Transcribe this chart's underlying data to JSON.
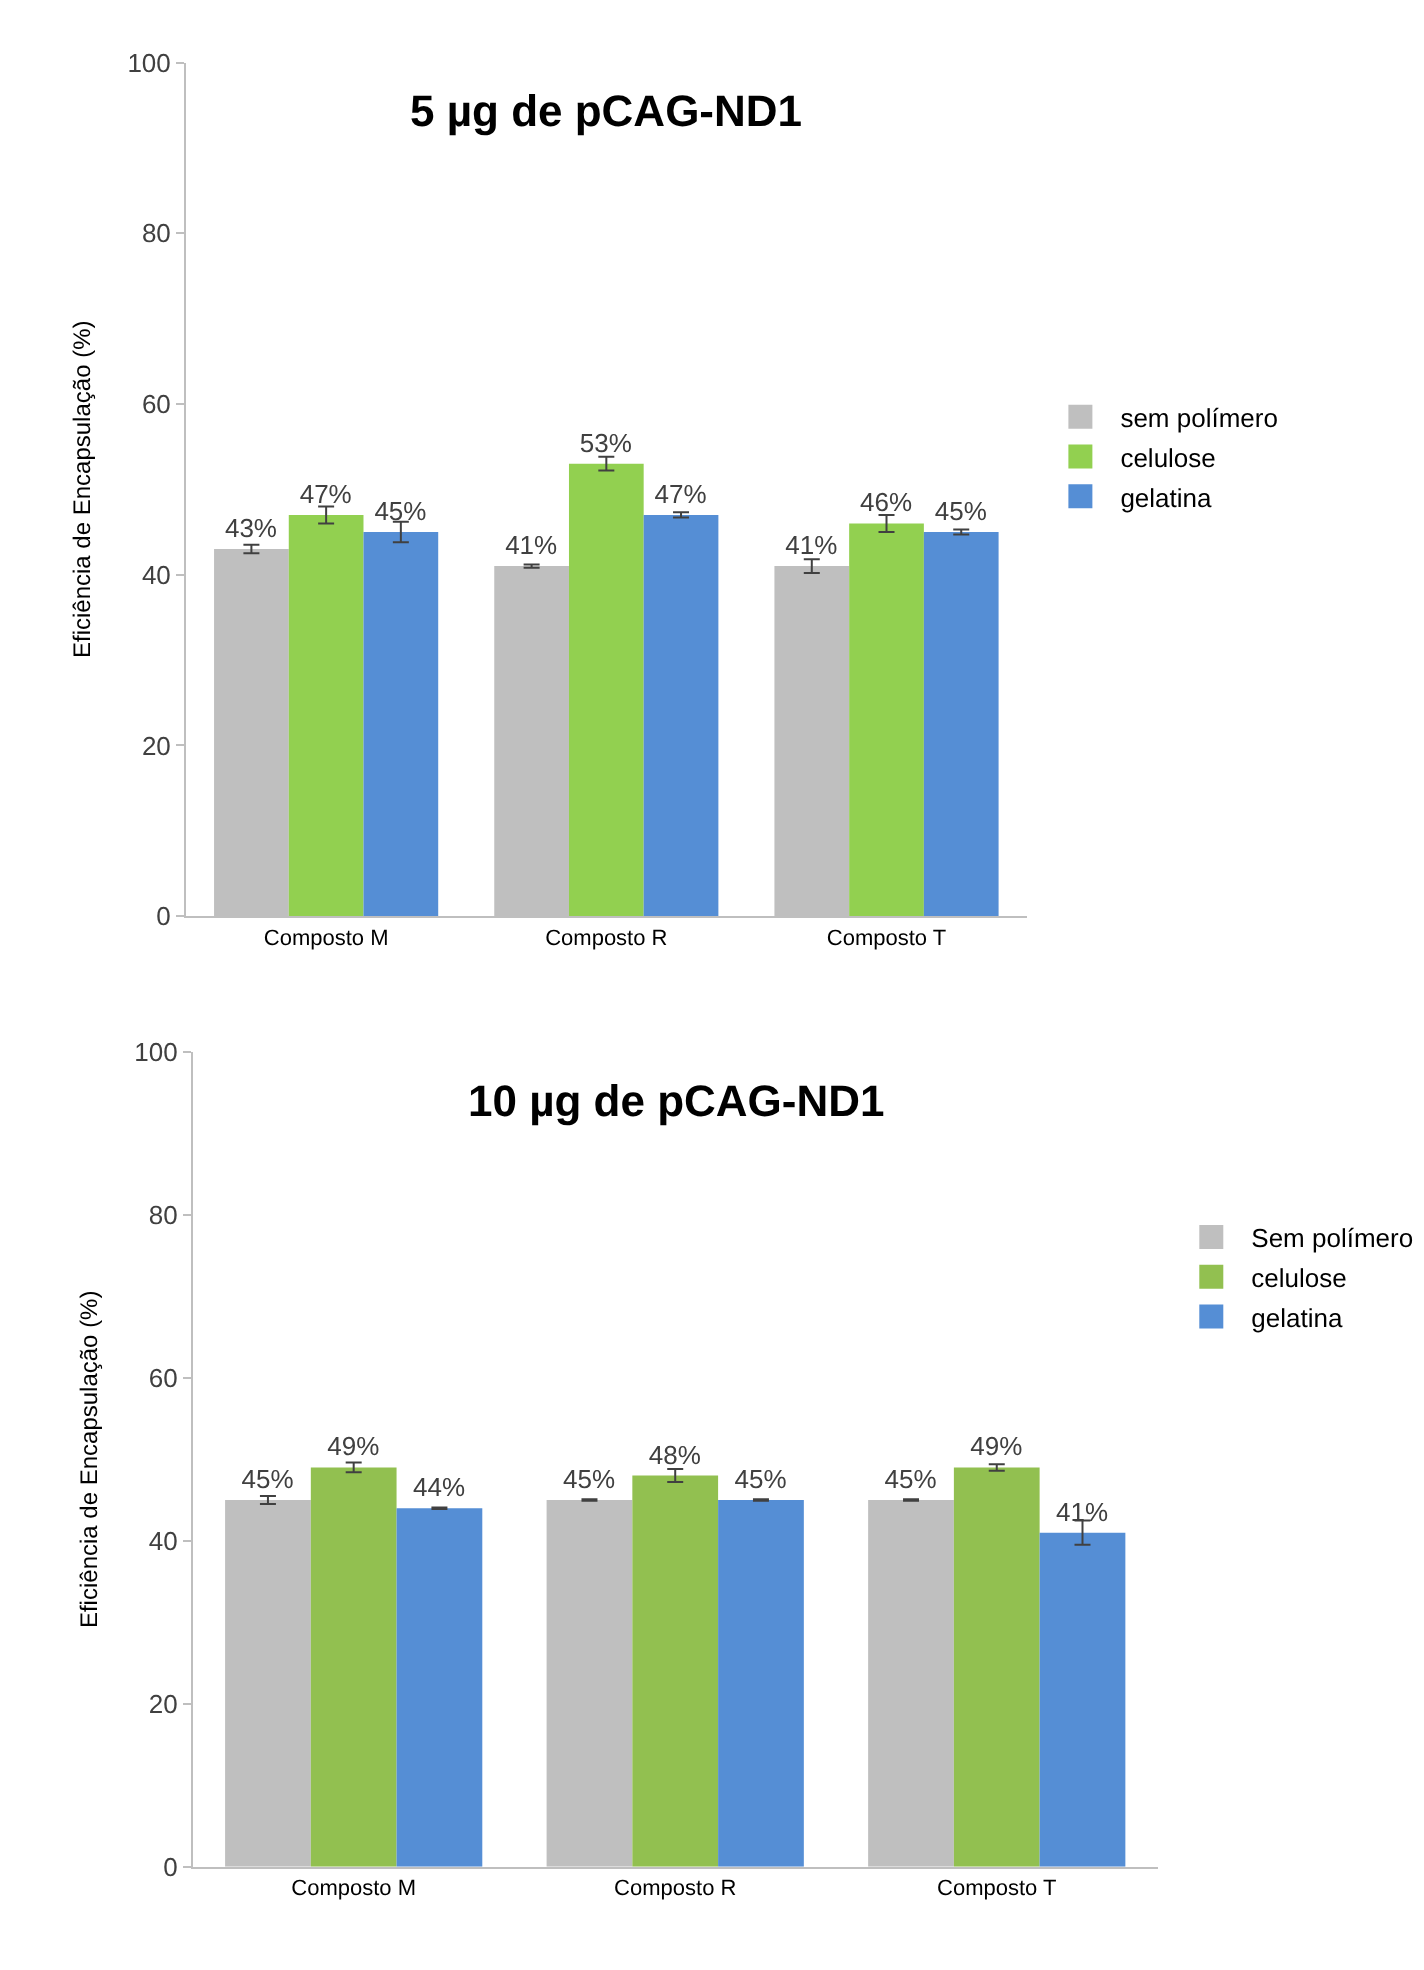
{
  "chart_data": [
    {
      "type": "bar",
      "title": "5 µg de pCAG-ND1",
      "ylabel": "Eficiência de Encapsulação (%)",
      "categories": [
        "Composto M",
        "Composto R",
        "Composto T"
      ],
      "series": [
        {
          "name": "sem polímero",
          "color": "#bfbfbf",
          "values": [
            43,
            41,
            41
          ],
          "errors": [
            0.5,
            0.2,
            0.8
          ],
          "value_labels": [
            "43%",
            "41%",
            "41%"
          ]
        },
        {
          "name": "celulose",
          "color": "#92d050",
          "values": [
            47,
            53,
            46
          ],
          "errors": [
            1,
            0.8,
            1
          ],
          "value_labels": [
            "47%",
            "53%",
            "46%"
          ]
        },
        {
          "name": "gelatina",
          "color": "#558ed5",
          "values": [
            45,
            47,
            45
          ],
          "errors": [
            1.2,
            0.3,
            0.3
          ],
          "value_labels": [
            "45%",
            "47%",
            "45%"
          ]
        }
      ],
      "ylim": [
        0,
        100
      ],
      "yticks": [
        0,
        20,
        40,
        60,
        80,
        100
      ],
      "legend": "right"
    },
    {
      "type": "bar",
      "title": "10 µg de pCAG-ND1",
      "ylabel": "Eficiência de Encapsulação (%)",
      "categories": [
        "Composto M",
        "Composto R",
        "Composto T"
      ],
      "series": [
        {
          "name": "Sem polímero",
          "color": "#bfbfbf",
          "values": [
            45,
            45,
            45
          ],
          "errors": [
            0.5,
            0.1,
            0.1
          ],
          "value_labels": [
            "45%",
            "45%",
            "45%"
          ]
        },
        {
          "name": "celulose",
          "color": "#92c050",
          "values": [
            49,
            48,
            49
          ],
          "errors": [
            0.6,
            0.8,
            0.4
          ],
          "value_labels": [
            "49%",
            "48%",
            "49%"
          ]
        },
        {
          "name": "gelatina",
          "color": "#558ed5",
          "values": [
            44,
            45,
            41
          ],
          "errors": [
            0.1,
            0.1,
            1.5
          ],
          "value_labels": [
            "44%",
            "45%",
            "41%"
          ]
        }
      ],
      "ylim": [
        0,
        100
      ],
      "yticks": [
        0,
        20,
        40,
        60,
        80,
        100
      ],
      "legend": "top right"
    }
  ]
}
